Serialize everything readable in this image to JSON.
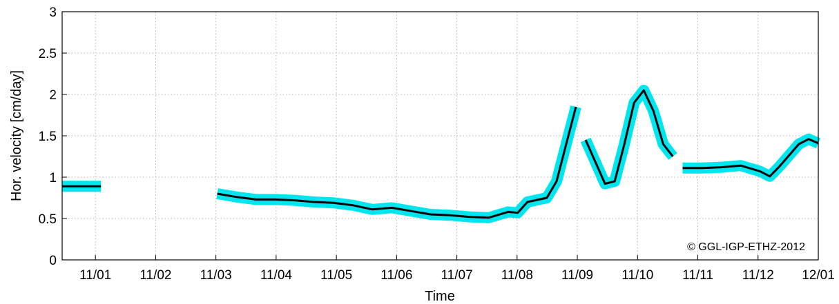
{
  "chart_data": {
    "type": "line",
    "title": "",
    "xlabel": "Time",
    "ylabel": "Hor. velocity [cm/day]",
    "ylim": [
      0,
      3
    ],
    "xlim": [
      "2012-10-23",
      "2012-12-01"
    ],
    "grid": true,
    "copyright": "© GGL-IGP-ETHZ-2012",
    "x_ticks": [
      "11/01",
      "11/02",
      "11/03",
      "11/04",
      "11/05",
      "11/06",
      "11/07",
      "11/08",
      "11/09",
      "11/10",
      "11/11",
      "11/12",
      "12/01"
    ],
    "y_ticks": [
      "0",
      "0.5",
      "1",
      "1.5",
      "2",
      "2.5",
      "3"
    ],
    "colors": {
      "velocity_line": "#000000",
      "uncertainty_band": "#00e5ee",
      "grid": "#b0b0b0"
    },
    "series": [
      {
        "segments": [
          {
            "x": [
              "2012-10-23",
              "2012-10-25"
            ],
            "y": [
              0.89,
              0.89
            ]
          },
          {
            "x": [
              "2012-10-31",
              "2012-11-01",
              "2012-11-02",
              "2012-11-03",
              "2012-11-04",
              "2012-11-05",
              "2012-11-06",
              "2012-11-07",
              "2012-11-08",
              "2012-11-09",
              "2012-11-10",
              "2012-11-11",
              "2012-11-12",
              "2012-11-13",
              "2012-11-14",
              "2012-11-15",
              "2012-11-15 12:00",
              "2012-11-16",
              "2012-11-17",
              "2012-11-17 12:00",
              "2012-11-18",
              "2012-11-18 12:00"
            ],
            "y": [
              0.8,
              0.76,
              0.73,
              0.73,
              0.72,
              0.7,
              0.69,
              0.66,
              0.61,
              0.63,
              0.59,
              0.55,
              0.54,
              0.52,
              0.51,
              0.58,
              0.57,
              0.7,
              0.75,
              0.95,
              1.4,
              1.85
            ]
          },
          {
            "x": [
              "2012-11-19",
              "2012-11-20",
              "2012-11-20 12:00",
              "2012-11-21",
              "2012-11-21 12:00",
              "2012-11-22",
              "2012-11-22 12:00",
              "2012-11-23",
              "2012-11-23 12:00"
            ],
            "y": [
              1.45,
              0.92,
              0.95,
              1.4,
              1.9,
              2.05,
              1.8,
              1.4,
              1.25
            ]
          },
          {
            "x": [
              "2012-11-24",
              "2012-11-25",
              "2012-11-26",
              "2012-11-27",
              "2012-11-28",
              "2012-11-28 12:00",
              "2012-11-29",
              "2012-11-30",
              "2012-11-30 12:00",
              "2012-12-01"
            ],
            "y": [
              1.11,
              1.11,
              1.12,
              1.14,
              1.07,
              1.01,
              1.13,
              1.4,
              1.46,
              1.41
            ]
          }
        ]
      }
    ]
  }
}
